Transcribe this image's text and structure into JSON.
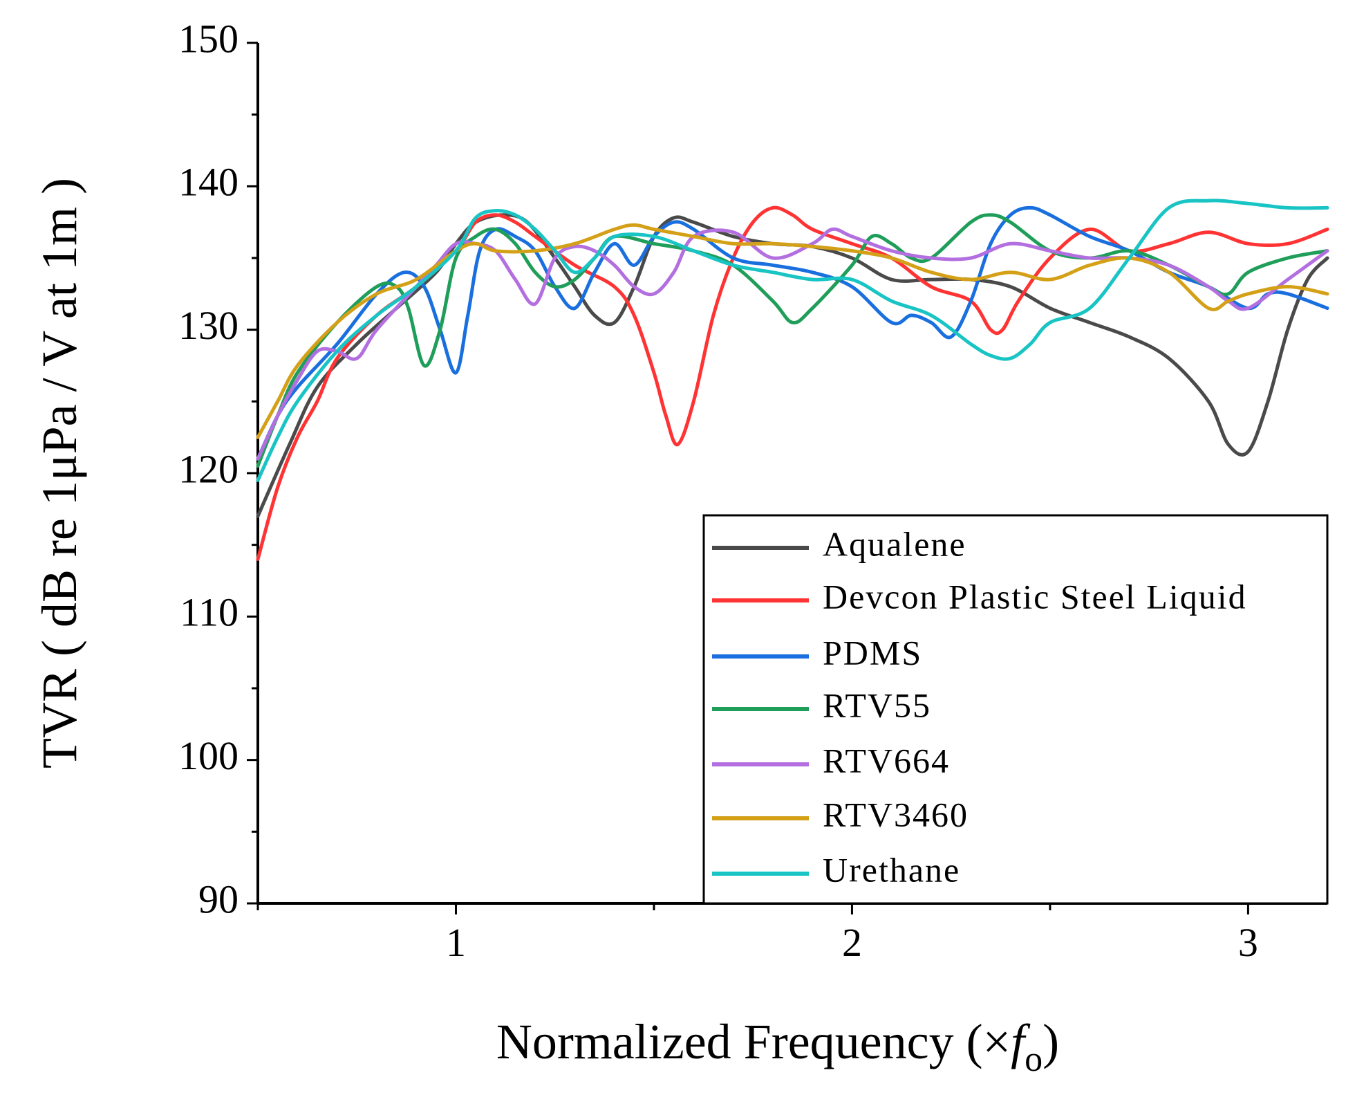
{
  "chart_data": {
    "type": "line",
    "title": "",
    "xlabel_main": "Normalized Frequency (×",
    "xlabel_italic": "f",
    "xlabel_sub": "o",
    "xlabel_close": ")",
    "ylabel": "TVR ( dB re 1μPa / V at 1m )",
    "xlim": [
      0.5,
      3.2
    ],
    "ylim": [
      90,
      150
    ],
    "xticks": [
      1,
      2,
      3
    ],
    "yticks": [
      90,
      100,
      110,
      120,
      130,
      140,
      150
    ],
    "legend_position": "lower-right",
    "series": [
      {
        "name": "Aqualene",
        "color": "#4a4a4a",
        "x": [
          0.5,
          0.58,
          0.65,
          0.75,
          0.85,
          0.95,
          1.0,
          1.05,
          1.12,
          1.18,
          1.25,
          1.3,
          1.35,
          1.4,
          1.45,
          1.5,
          1.55,
          1.6,
          1.7,
          1.8,
          1.9,
          2.0,
          2.1,
          2.2,
          2.3,
          2.4,
          2.5,
          2.6,
          2.7,
          2.8,
          2.9,
          2.95,
          3.0,
          3.05,
          3.1,
          3.15,
          3.2
        ],
        "values": [
          117,
          122,
          126,
          129,
          131.5,
          134,
          136,
          137.5,
          138,
          137.5,
          135,
          133,
          131,
          130.5,
          133,
          136.5,
          137.8,
          137.5,
          136.5,
          136,
          135.8,
          135,
          133.5,
          133.5,
          133.5,
          133,
          131.5,
          130.5,
          129.5,
          128,
          125,
          122,
          121.5,
          125,
          130,
          133.5,
          135
        ]
      },
      {
        "name": "Devcon Plastic Steel Liquid",
        "color": "#ff3333",
        "x": [
          0.5,
          0.55,
          0.6,
          0.65,
          0.7,
          0.8,
          0.9,
          1.0,
          1.05,
          1.1,
          1.15,
          1.2,
          1.3,
          1.4,
          1.45,
          1.5,
          1.53,
          1.56,
          1.6,
          1.65,
          1.7,
          1.75,
          1.8,
          1.85,
          1.9,
          2.0,
          2.1,
          2.2,
          2.3,
          2.35,
          2.38,
          2.42,
          2.5,
          2.6,
          2.7,
          2.8,
          2.9,
          3.0,
          3.1,
          3.2
        ],
        "values": [
          114,
          119,
          122.5,
          125,
          128,
          131,
          133,
          135.5,
          137.5,
          138,
          137.5,
          136.5,
          134.5,
          133,
          131,
          127,
          124,
          122,
          125,
          131,
          135,
          137.5,
          138.5,
          138,
          137,
          136,
          135,
          133,
          132,
          130,
          130,
          132,
          135,
          137,
          135.5,
          136,
          136.8,
          136,
          136,
          137
        ]
      },
      {
        "name": "PDMS",
        "color": "#1a6fdf",
        "x": [
          0.5,
          0.55,
          0.6,
          0.7,
          0.8,
          0.87,
          0.92,
          0.96,
          1.0,
          1.03,
          1.06,
          1.1,
          1.15,
          1.2,
          1.25,
          1.3,
          1.35,
          1.4,
          1.45,
          1.5,
          1.55,
          1.6,
          1.7,
          1.8,
          1.9,
          2.0,
          2.1,
          2.15,
          2.2,
          2.25,
          2.3,
          2.35,
          2.4,
          2.45,
          2.5,
          2.6,
          2.7,
          2.8,
          2.9,
          3.0,
          3.05,
          3.1,
          3.2
        ],
        "values": [
          121,
          124,
          126,
          129,
          132.5,
          134,
          133,
          130,
          127,
          131,
          135.5,
          137,
          136.5,
          135.5,
          133,
          131.5,
          134,
          136,
          134.5,
          136.5,
          137.5,
          137,
          135,
          134.5,
          134,
          133,
          130.5,
          131,
          130.5,
          129.5,
          132,
          136,
          138,
          138.5,
          138,
          136.5,
          135.5,
          134,
          133,
          131.5,
          132.5,
          132.5,
          131.5
        ]
      },
      {
        "name": "RTV55",
        "color": "#1f9e5a",
        "x": [
          0.5,
          0.55,
          0.6,
          0.7,
          0.8,
          0.85,
          0.88,
          0.92,
          0.96,
          1.0,
          1.05,
          1.1,
          1.15,
          1.2,
          1.25,
          1.3,
          1.35,
          1.4,
          1.5,
          1.6,
          1.7,
          1.8,
          1.85,
          1.9,
          2.0,
          2.05,
          2.1,
          2.15,
          2.2,
          2.3,
          2.35,
          2.4,
          2.5,
          2.6,
          2.7,
          2.8,
          2.9,
          2.95,
          3.0,
          3.1,
          3.2
        ],
        "values": [
          120.5,
          124,
          127,
          130.5,
          133,
          133,
          131.5,
          127.5,
          130,
          135,
          136.5,
          137,
          136,
          134,
          133,
          133.5,
          135,
          136.5,
          136,
          135.5,
          134.5,
          132,
          130.5,
          131.5,
          134.5,
          136.5,
          136,
          135,
          135,
          137.5,
          138,
          137.5,
          135.5,
          135,
          135.5,
          134.5,
          133,
          132.5,
          134,
          135,
          135.5
        ]
      },
      {
        "name": "RTV664",
        "color": "#b36ee0",
        "x": [
          0.5,
          0.55,
          0.6,
          0.65,
          0.7,
          0.75,
          0.8,
          0.9,
          0.95,
          1.0,
          1.05,
          1.1,
          1.15,
          1.2,
          1.25,
          1.3,
          1.35,
          1.4,
          1.45,
          1.5,
          1.55,
          1.6,
          1.7,
          1.8,
          1.9,
          1.95,
          2.0,
          2.1,
          2.2,
          2.3,
          2.4,
          2.5,
          2.6,
          2.7,
          2.8,
          2.9,
          2.95,
          3.0,
          3.1,
          3.2
        ],
        "values": [
          121,
          124,
          126.5,
          128.5,
          128.5,
          128,
          130,
          133,
          134.5,
          136,
          136,
          135.5,
          133.5,
          131.8,
          135,
          135.8,
          135.5,
          134.5,
          133,
          132.5,
          134,
          136.5,
          136.8,
          135,
          136,
          137,
          136.5,
          135.5,
          135,
          135,
          136,
          135.5,
          135,
          135,
          134.5,
          133,
          132,
          131.5,
          133.5,
          135.5
        ]
      },
      {
        "name": "RTV3460",
        "color": "#d4a017",
        "x": [
          0.5,
          0.55,
          0.6,
          0.7,
          0.8,
          0.9,
          1.0,
          1.05,
          1.1,
          1.2,
          1.3,
          1.4,
          1.45,
          1.5,
          1.6,
          1.7,
          1.8,
          1.9,
          2.0,
          2.1,
          2.2,
          2.3,
          2.4,
          2.5,
          2.6,
          2.7,
          2.8,
          2.9,
          2.95,
          3.0,
          3.1,
          3.2
        ],
        "values": [
          122.5,
          125,
          127.5,
          130.5,
          132.5,
          133.5,
          135.5,
          136,
          135.5,
          135.5,
          136,
          137,
          137.3,
          137,
          136.5,
          136,
          136,
          135.8,
          135.5,
          135,
          134,
          133.5,
          134,
          133.5,
          134.5,
          135,
          134,
          131.5,
          132,
          132.5,
          133,
          132.5
        ]
      },
      {
        "name": "Urethane",
        "color": "#19c4c4",
        "x": [
          0.5,
          0.55,
          0.6,
          0.7,
          0.8,
          0.9,
          1.0,
          1.05,
          1.1,
          1.15,
          1.2,
          1.25,
          1.3,
          1.35,
          1.4,
          1.5,
          1.6,
          1.7,
          1.8,
          1.9,
          2.0,
          2.1,
          2.2,
          2.3,
          2.35,
          2.4,
          2.45,
          2.5,
          2.6,
          2.7,
          2.8,
          2.9,
          3.0,
          3.1,
          3.2
        ],
        "values": [
          119.5,
          122.5,
          125,
          128.5,
          131,
          133,
          135.5,
          137.8,
          138.3,
          138,
          137,
          135.5,
          134,
          135,
          136.5,
          136.5,
          135.5,
          134.5,
          134,
          133.5,
          133.5,
          132,
          131,
          129,
          128.2,
          128,
          129,
          130.5,
          131.5,
          135,
          138.5,
          139,
          138.8,
          138.5,
          138.5
        ]
      }
    ]
  }
}
